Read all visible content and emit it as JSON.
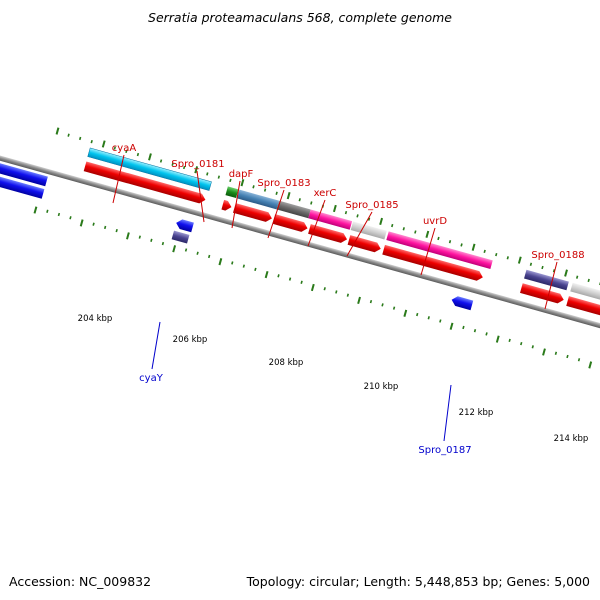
{
  "title": "Serratia proteamaculans 568, complete genome",
  "footer": {
    "accession": "Accession: NC_009832",
    "summary": "Topology: circular; Length: 5,448,853 bp; Genes: 5,000"
  },
  "colors": {
    "forward_label": "#cc0000",
    "reverse_label": "#0000cc",
    "tick": "#2a7a1a",
    "backbone": "#8a8a8a"
  },
  "scale_labels": [
    "204 kbp",
    "206 kbp",
    "208 kbp",
    "210 kbp",
    "212 kbp",
    "214 kbp"
  ],
  "forward_gene_labels": [
    "cyaA",
    "Spro_0181",
    "dapF",
    "Spro_0183",
    "xerC",
    "Spro_0185",
    "uvrD",
    "Spro_0188"
  ],
  "reverse_gene_labels": [
    "cyaY",
    "Spro_0187"
  ]
}
